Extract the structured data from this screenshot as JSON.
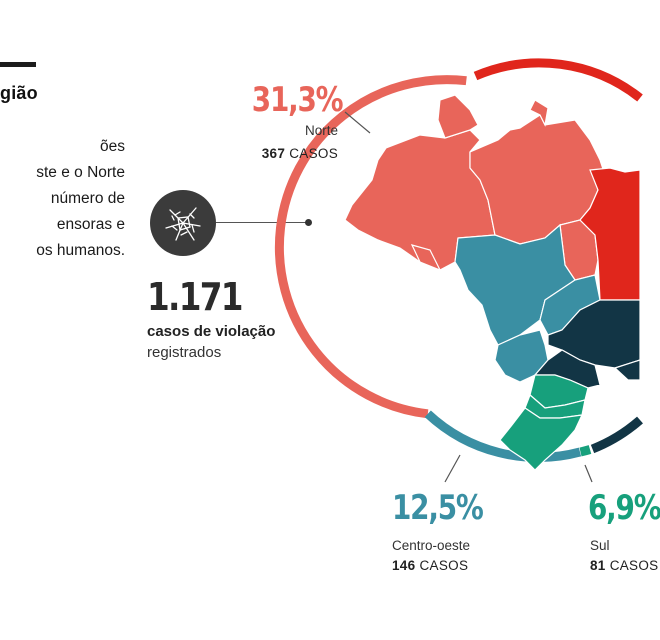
{
  "section": {
    "title": "gião",
    "intro_lines": [
      "ões",
      "ste e o Norte",
      "número de",
      "ensoras e",
      "os humanos."
    ]
  },
  "total": {
    "count": "1.171",
    "label": "casos de violação",
    "sublabel": "registrados",
    "icon": "shattered-glass-icon"
  },
  "regions": {
    "norte": {
      "percent": "31,3%",
      "name": "Norte",
      "cases_count": "367",
      "cases_unit": "CASOS",
      "color": "#e8655a"
    },
    "centro_oeste": {
      "percent": "12,5%",
      "name": "Centro-oeste",
      "cases_count": "146",
      "cases_unit": "CASOS",
      "color": "#3a8fa3"
    },
    "sul": {
      "percent": "6,9%",
      "name": "Sul",
      "cases_count": "81",
      "cases_unit": "CASOS",
      "color": "#17a07c"
    }
  },
  "colors": {
    "nordeste": "#e0261c",
    "sudeste": "#123545",
    "ring_nordeste": "#e0261c",
    "ring_sudeste": "#123545"
  }
}
